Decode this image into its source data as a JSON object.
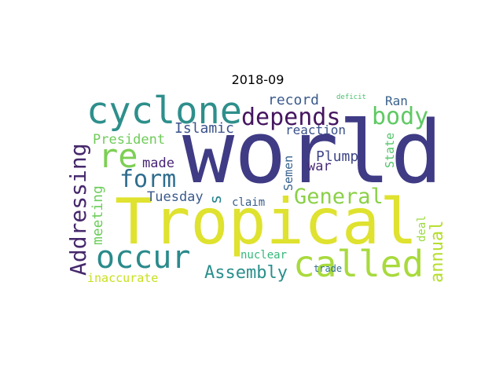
{
  "title": "2018-09",
  "words": [
    {
      "text": "world",
      "color": "#3f3b84",
      "vertical": false
    },
    {
      "text": "Tropical",
      "color": "#dfe22e",
      "vertical": false
    },
    {
      "text": "cyclone",
      "color": "#2e8f8b",
      "vertical": false
    },
    {
      "text": "re",
      "color": "#7ccf54",
      "vertical": false
    },
    {
      "text": "called",
      "color": "#a8da3c",
      "vertical": false
    },
    {
      "text": "occur",
      "color": "#2a8a8b",
      "vertical": false
    },
    {
      "text": "depends",
      "color": "#45155f",
      "vertical": false
    },
    {
      "text": "body",
      "color": "#5fc964",
      "vertical": false
    },
    {
      "text": "form",
      "color": "#2f6d8e",
      "vertical": false
    },
    {
      "text": "General",
      "color": "#8bd047",
      "vertical": false
    },
    {
      "text": "Addressing",
      "color": "#46286b",
      "vertical": true
    },
    {
      "text": "annual",
      "color": "#b5de2b",
      "vertical": true
    },
    {
      "text": "Assembly",
      "color": "#2a8f8c",
      "vertical": false
    },
    {
      "text": "record",
      "color": "#3b5a8c",
      "vertical": false
    },
    {
      "text": "Ran",
      "color": "#3b628c",
      "vertical": false
    },
    {
      "text": "Islamic",
      "color": "#3b528b",
      "vertical": false
    },
    {
      "text": "reaction",
      "color": "#39508a",
      "vertical": false
    },
    {
      "text": "President",
      "color": "#6fcb5a",
      "vertical": false
    },
    {
      "text": "made",
      "color": "#482576",
      "vertical": false
    },
    {
      "text": "Plump",
      "color": "#3f4889",
      "vertical": false
    },
    {
      "text": "Semen",
      "color": "#35618d",
      "vertical": true
    },
    {
      "text": "State",
      "color": "#53c569",
      "vertical": true
    },
    {
      "text": "war",
      "color": "#482a78",
      "vertical": false
    },
    {
      "text": "meeting",
      "color": "#6ccd5a",
      "vertical": true
    },
    {
      "text": "Tuesday",
      "color": "#3b5a8c",
      "vertical": false
    },
    {
      "text": "s",
      "color": "#26828e",
      "vertical": true
    },
    {
      "text": "claim",
      "color": "#3a5e8c",
      "vertical": false
    },
    {
      "text": "nuclear",
      "color": "#35b779",
      "vertical": false
    },
    {
      "text": "inaccurate",
      "color": "#c8e020",
      "vertical": false
    },
    {
      "text": "deficit",
      "color": "#4ac16d",
      "vertical": false
    },
    {
      "text": "deal",
      "color": "#9cd93b",
      "vertical": true
    },
    {
      "text": "trade",
      "color": "#2f6f8e",
      "vertical": false
    }
  ]
}
